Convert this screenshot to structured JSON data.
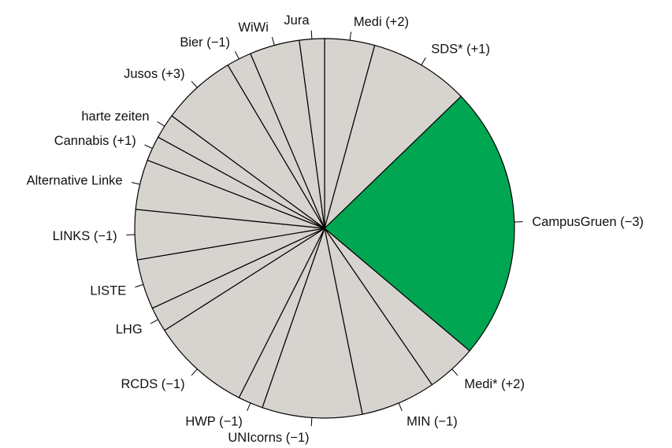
{
  "chart_data": {
    "type": "pie",
    "title": "",
    "direction": "clockwise",
    "start": "top",
    "slices": [
      {
        "label": "Medi (+2)",
        "value": 2,
        "color": "#d7d4d0"
      },
      {
        "label": "SDS* (+1)",
        "value": 4,
        "color": "#d7d4d0"
      },
      {
        "label": "CampusGruen (−3)",
        "value": 11,
        "color": "#00a651"
      },
      {
        "label": "Medi* (+2)",
        "value": 2,
        "color": "#d7d4d0"
      },
      {
        "label": "MIN (−1)",
        "value": 3,
        "color": "#d7d4d0"
      },
      {
        "label": "UNIcorns (−1)",
        "value": 4,
        "color": "#d7d4d0"
      },
      {
        "label": "HWP (−1)",
        "value": 1,
        "color": "#d7d4d0"
      },
      {
        "label": "RCDS (−1)",
        "value": 4,
        "color": "#d7d4d0"
      },
      {
        "label": "LHG",
        "value": 1,
        "color": "#d7d4d0"
      },
      {
        "label": "LISTE",
        "value": 2,
        "color": "#d7d4d0"
      },
      {
        "label": "LINKS (−1)",
        "value": 2,
        "color": "#d7d4d0"
      },
      {
        "label": "Alternative Linke",
        "value": 2,
        "color": "#d7d4d0"
      },
      {
        "label": "Cannabis (+1)",
        "value": 1,
        "color": "#d7d4d0"
      },
      {
        "label": "harte zeiten",
        "value": 1,
        "color": "#d7d4d0"
      },
      {
        "label": "Jusos (+3)",
        "value": 3,
        "color": "#d7d4d0"
      },
      {
        "label": "Bier (−1)",
        "value": 1,
        "color": "#d7d4d0"
      },
      {
        "label": "WiWi",
        "value": 2,
        "color": "#d7d4d0"
      },
      {
        "label": "Jura",
        "value": 1,
        "color": "#d7d4d0"
      }
    ]
  }
}
